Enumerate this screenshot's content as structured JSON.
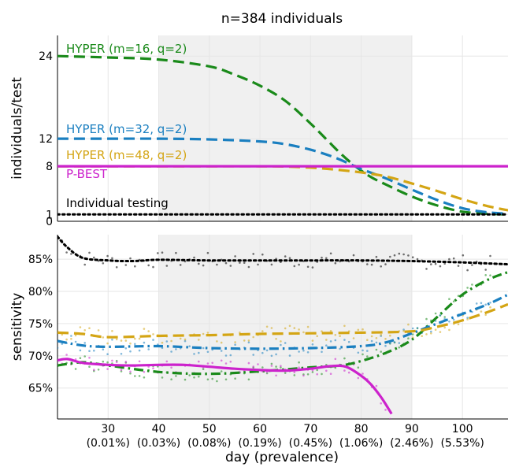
{
  "title": "n=384 individuals",
  "xlabel": "day (prevalence)",
  "colors": {
    "hyper16": "#1a8a1a",
    "hyper32": "#1a7fc0",
    "hyper48": "#d4a514",
    "pbest": "#cc22cc",
    "individual": "#000000",
    "shade": "#f0f0f0",
    "grid": "#e6e6e6"
  },
  "shaded_region": [
    40,
    90
  ],
  "x_ticks": [
    {
      "day": 30,
      "label": "30",
      "prev": "(0.01%)"
    },
    {
      "day": 40,
      "label": "40",
      "prev": "(0.03%)"
    },
    {
      "day": 50,
      "label": "50",
      "prev": "(0.08%)"
    },
    {
      "day": 60,
      "label": "60",
      "prev": "(0.19%)"
    },
    {
      "day": 70,
      "label": "70",
      "prev": "(0.45%)"
    },
    {
      "day": 80,
      "label": "80",
      "prev": "(1.06%)"
    },
    {
      "day": 90,
      "label": "90",
      "prev": "(2.46%)"
    },
    {
      "day": 100,
      "label": "100",
      "prev": "(5.53%)"
    }
  ],
  "chart_data": [
    {
      "type": "line",
      "title": "n=384 individuals",
      "xlabel": "",
      "ylabel": "individuals/test",
      "xlim": [
        20,
        109
      ],
      "ylim": [
        0,
        27
      ],
      "y_ticks": [
        {
          "value": 0,
          "label": "0"
        },
        {
          "value": 1,
          "label": "1"
        },
        {
          "value": 8,
          "label": "8"
        },
        {
          "value": 12,
          "label": "12"
        },
        {
          "value": 24,
          "label": "24"
        }
      ],
      "series": [
        {
          "name": "HYPER (m=16, q=2)",
          "color_key": "hyper16",
          "style": "dash",
          "x": [
            20,
            30,
            40,
            50,
            55,
            60,
            65,
            70,
            73,
            76,
            79,
            82,
            85,
            90,
            95,
            100,
            105,
            109
          ],
          "y": [
            24,
            23.8,
            23.5,
            22.5,
            21.3,
            19.7,
            17.5,
            14.2,
            12,
            9.8,
            7.9,
            6.4,
            5.3,
            3.6,
            2.3,
            1.4,
            1.1,
            1
          ]
        },
        {
          "name": "HYPER (m=32, q=2)",
          "color_key": "hyper32",
          "style": "dash",
          "x": [
            20,
            30,
            40,
            50,
            60,
            65,
            70,
            75,
            80,
            85,
            90,
            95,
            100,
            105,
            109
          ],
          "y": [
            12,
            12,
            12,
            11.9,
            11.6,
            11.2,
            10.4,
            9.2,
            7.6,
            6.2,
            4.6,
            3.1,
            1.9,
            1.3,
            1.1
          ]
        },
        {
          "name": "HYPER (m=48, q=2)",
          "color_key": "hyper48",
          "style": "dash",
          "x": [
            20,
            30,
            40,
            50,
            60,
            65,
            70,
            75,
            80,
            85,
            90,
            95,
            100,
            105,
            109
          ],
          "y": [
            8,
            8,
            8,
            8,
            8,
            7.95,
            7.8,
            7.5,
            7.1,
            6.5,
            5.5,
            4.4,
            3.2,
            2.2,
            1.6
          ]
        },
        {
          "name": "P-BEST",
          "color_key": "pbest",
          "style": "solid",
          "x": [
            20,
            109
          ],
          "y": [
            8,
            8
          ]
        },
        {
          "name": "Individual testing",
          "color_key": "individual",
          "style": "dot",
          "x": [
            20,
            109
          ],
          "y": [
            1,
            1
          ]
        }
      ]
    },
    {
      "type": "line",
      "title": "",
      "xlabel": "day (prevalence)",
      "ylabel": "sensitivity",
      "xlim": [
        20,
        109
      ],
      "ylim": [
        60.2,
        88.8
      ],
      "y_ticks": [
        {
          "value": 65,
          "label": "65%"
        },
        {
          "value": 70,
          "label": "70%"
        },
        {
          "value": 75,
          "label": "75%"
        },
        {
          "value": 80,
          "label": "80%"
        },
        {
          "value": 85,
          "label": "85%"
        }
      ],
      "series": [
        {
          "color_key": "individual",
          "style": "dot",
          "x": [
            20,
            22,
            25,
            30,
            35,
            40,
            50,
            60,
            70,
            80,
            90,
            100,
            109
          ],
          "y": [
            88.5,
            86.8,
            85.2,
            84.8,
            84.7,
            84.9,
            84.8,
            84.8,
            84.8,
            84.8,
            84.7,
            84.5,
            84.2
          ]
        },
        {
          "color_key": "hyper16",
          "style": "dashdot",
          "x": [
            20,
            25,
            30,
            40,
            50,
            60,
            70,
            76,
            80,
            85,
            90,
            95,
            100,
            105,
            109
          ],
          "y": [
            68.5,
            69,
            68.5,
            67.5,
            67.2,
            67.6,
            68.2,
            68.5,
            69.2,
            70.5,
            72.5,
            76,
            79.5,
            81.8,
            83
          ]
        },
        {
          "color_key": "hyper32",
          "style": "dashdot",
          "x": [
            20,
            25,
            30,
            40,
            50,
            60,
            70,
            80,
            85,
            90,
            95,
            100,
            105,
            109
          ],
          "y": [
            72.3,
            71.6,
            71.4,
            71.5,
            71.2,
            71.1,
            71.2,
            71.5,
            72.1,
            73.5,
            75,
            76.5,
            78,
            79.5
          ]
        },
        {
          "color_key": "hyper48",
          "style": "dash",
          "x": [
            20,
            25,
            30,
            40,
            50,
            60,
            70,
            80,
            90,
            95,
            100,
            105,
            109
          ],
          "y": [
            73.6,
            73.4,
            72.9,
            73.1,
            73.2,
            73.4,
            73.5,
            73.6,
            73.8,
            74.5,
            75.5,
            76.8,
            78
          ]
        },
        {
          "color_key": "pbest",
          "style": "solid",
          "x": [
            20,
            22,
            25,
            30,
            35,
            40,
            45,
            50,
            55,
            60,
            65,
            70,
            74,
            77,
            80,
            82,
            84,
            86
          ],
          "y": [
            69.3,
            69.5,
            68.9,
            68.6,
            68.5,
            68.6,
            68.6,
            68.3,
            68,
            67.8,
            67.7,
            68,
            68.4,
            68.3,
            66.9,
            65.5,
            63.5,
            61
          ]
        }
      ]
    }
  ]
}
